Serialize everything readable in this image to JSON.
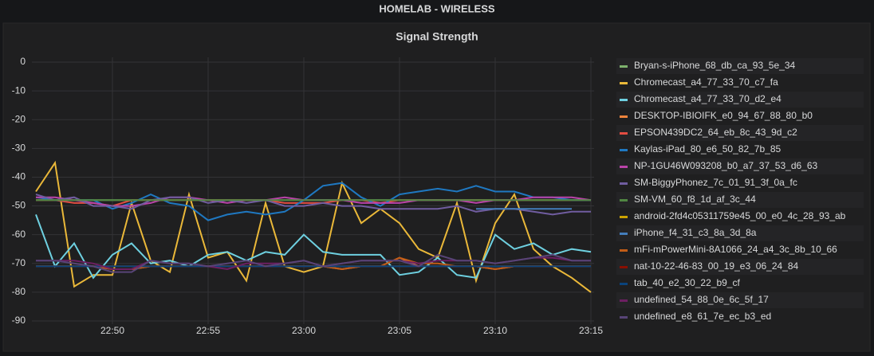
{
  "header": {
    "title": "HOMELAB - WIRELESS"
  },
  "chart_data": {
    "type": "line",
    "title": "Signal Strength",
    "x": [
      "22:46",
      "22:47",
      "22:48",
      "22:49",
      "22:50",
      "22:51",
      "22:52",
      "22:53",
      "22:54",
      "22:55",
      "22:56",
      "22:57",
      "22:58",
      "22:59",
      "23:00",
      "23:01",
      "23:02",
      "23:03",
      "23:04",
      "23:05",
      "23:06",
      "23:07",
      "23:08",
      "23:09",
      "23:10",
      "23:11",
      "23:12",
      "23:13",
      "23:14",
      "23:15"
    ],
    "xlim": [
      "22:46",
      "23:15"
    ],
    "xticks": [
      "22:50",
      "22:55",
      "23:00",
      "23:05",
      "23:10",
      "23:15"
    ],
    "ylim": [
      -90,
      0
    ],
    "yticks": [
      0,
      -10,
      -20,
      -30,
      -40,
      -50,
      -60,
      -70,
      -80,
      -90
    ],
    "grid": true,
    "legend": "right",
    "series": [
      {
        "name": "Bryan-s-iPhone_68_db_ca_93_5e_34",
        "color": "#7eb26d",
        "values": [
          -48,
          -48,
          -48,
          -48,
          -48,
          -48,
          -48,
          -48,
          -48,
          -48,
          -48,
          -48,
          -48,
          -48,
          -48,
          -48,
          -48,
          -48,
          -48,
          -48,
          -48,
          -48,
          -48,
          -48,
          -48,
          -48,
          -48,
          -48,
          -48,
          -48
        ]
      },
      {
        "name": "Chromecast_a4_77_33_70_c7_fa",
        "color": "#eab839",
        "values": [
          -45,
          -35,
          -78,
          -74,
          -74,
          -49,
          -69,
          -73,
          -46,
          -68,
          -66,
          -76,
          -49,
          -71,
          -73,
          -71,
          -42,
          -56,
          -51,
          -56,
          -65,
          -68,
          -49,
          -76,
          -56,
          -46,
          -65,
          -71,
          -75,
          -80
        ]
      },
      {
        "name": "Chromecast_a4_77_33_70_d2_e4",
        "color": "#6ed0e0",
        "values": [
          -53,
          -71,
          -63,
          -75,
          -67,
          -63,
          -70,
          -69,
          -71,
          -67,
          -66,
          -69,
          -66,
          -67,
          -60,
          -66,
          -67,
          -67,
          -67,
          -74,
          -73,
          -68,
          -74,
          -75,
          -60,
          -65,
          -63,
          -67,
          -65,
          -66
        ]
      },
      {
        "name": "DESKTOP-IBIOIFK_e0_94_67_88_80_b0",
        "color": "#ef843c",
        "values": [
          -71,
          -71,
          -71,
          -71,
          -72,
          -72,
          -71,
          -71,
          -71,
          -71,
          -71,
          -71,
          -71,
          -71,
          -71,
          -71,
          -72,
          -71,
          -71,
          -68,
          -71,
          -71,
          -71,
          -71,
          -72,
          -71,
          -71,
          -71,
          -71,
          -71
        ]
      },
      {
        "name": "EPSON439DC2_64_eb_8c_43_9d_c2",
        "color": "#e24d42",
        "values": [
          -48,
          -48,
          -49,
          -49,
          -50,
          -48,
          -48,
          -48,
          -48,
          -48,
          -48,
          -48,
          -48,
          -49,
          -49,
          -49,
          -48,
          -48,
          -49,
          -48,
          -48,
          -48,
          -48,
          -48,
          -48,
          -48,
          -48,
          -48,
          -48,
          -48
        ]
      },
      {
        "name": "Kaylas-iPad_80_e6_50_82_7b_85",
        "color": "#1f78c1",
        "values": [
          -47,
          -48,
          -48,
          -48,
          -51,
          -49,
          -46,
          -49,
          -50,
          -55,
          -53,
          -52,
          -53,
          -52,
          -48,
          -43,
          -42,
          -47,
          -50,
          -46,
          -45,
          -44,
          -45,
          -43,
          -45,
          -45,
          -47,
          -47,
          -48,
          -48
        ]
      },
      {
        "name": "NP-1GU46W093208_b0_a7_37_53_d6_63",
        "color": "#ba43a9",
        "values": [
          -47,
          -47,
          -48,
          -49,
          -50,
          -50,
          -49,
          -47,
          -47,
          -48,
          -49,
          -48,
          -48,
          -47,
          -48,
          -48,
          -48,
          -49,
          -49,
          -49,
          -48,
          -48,
          -48,
          -49,
          -48,
          -48,
          -47,
          -47,
          -47,
          -48
        ]
      },
      {
        "name": "SM-BiggyPhonez_7c_01_91_3f_0a_fc",
        "color": "#705da0",
        "values": [
          -46,
          -48,
          -47,
          -50,
          -50,
          -51,
          -48,
          -47,
          -47,
          -49,
          -48,
          -49,
          -48,
          -50,
          -50,
          -49,
          -50,
          -50,
          -51,
          -51,
          -51,
          -51,
          -50,
          -52,
          -51,
          -51,
          -52,
          -53,
          -52,
          -52
        ]
      },
      {
        "name": "SM-VM_60_f8_1d_af_3c_44",
        "color": "#508642",
        "values": [
          -48,
          -48,
          -48,
          -48,
          -48,
          -48,
          -48,
          -48,
          -48,
          -48,
          -48,
          -48,
          -48,
          -48,
          -48,
          -48,
          -48,
          -48,
          -48,
          -48,
          -48,
          -48,
          -48,
          -48,
          -48,
          -48,
          -48,
          -48,
          -48,
          -48
        ]
      },
      {
        "name": "android-2fd4c05311759e45_00_e0_4c_28_93_ab",
        "color": "#cca300",
        "values": [
          -71,
          -71,
          -71,
          -71,
          -71,
          -71,
          -71,
          -71,
          -71,
          -71,
          -71,
          -71,
          -71,
          -71,
          -71,
          -71,
          -71,
          -71,
          -71,
          -71,
          -71,
          -71,
          -71,
          -71,
          -71,
          -71,
          -71,
          -71,
          -71,
          -71
        ]
      },
      {
        "name": "iPhone_f4_31_c3_8a_3d_8a",
        "color": "#447ebc",
        "values": [
          null,
          null,
          null,
          null,
          null,
          null,
          null,
          null,
          null,
          null,
          null,
          null,
          null,
          null,
          null,
          null,
          null,
          null,
          null,
          null,
          null,
          null,
          null,
          -51,
          -51,
          -51,
          -51,
          -51,
          -51,
          null
        ]
      },
      {
        "name": "mFi-mPowerMini-8A1066_24_a4_3c_8b_10_66",
        "color": "#c15c17",
        "values": [
          -71,
          -71,
          -71,
          -71,
          -72,
          -72,
          -71,
          -71,
          -71,
          -71,
          -71,
          -71,
          -71,
          -71,
          -71,
          -71,
          -72,
          -71,
          -71,
          -68,
          -70,
          -70,
          -71,
          -71,
          -72,
          -71,
          -71,
          -71,
          -71,
          -71
        ]
      },
      {
        "name": "nat-10-22-46-83_00_19_e3_06_24_84",
        "color": "#890f02",
        "values": [
          -71,
          -71,
          -71,
          -71,
          -71,
          -71,
          -71,
          -71,
          -71,
          -71,
          -71,
          -71,
          -71,
          -71,
          -71,
          -71,
          -71,
          -71,
          -71,
          -71,
          -71,
          -71,
          -71,
          -71,
          -71,
          -71,
          -71,
          -71,
          -71,
          -71
        ]
      },
      {
        "name": "tab_40_e2_30_22_b9_cf",
        "color": "#0a437c",
        "values": [
          -71,
          -71,
          -71,
          -71,
          -71,
          -71,
          -71,
          -71,
          -71,
          -71,
          -71,
          -71,
          -71,
          -71,
          -71,
          -71,
          -71,
          -71,
          -71,
          -71,
          -71,
          -71,
          -71,
          -71,
          -71,
          -71,
          -71,
          -71,
          -71,
          -71
        ]
      },
      {
        "name": "undefined_54_88_0e_6c_5f_17",
        "color": "#6d1f62",
        "values": [
          -69,
          -69,
          -69,
          -70,
          -72,
          -72,
          -69,
          -70,
          -70,
          -71,
          -72,
          -70,
          -70,
          -70,
          -69,
          -71,
          -70,
          -69,
          -69,
          -69,
          -70,
          -69,
          -69,
          -69,
          -70,
          -69,
          -68,
          -68,
          -69,
          -69
        ]
      },
      {
        "name": "undefined_e8_61_7e_ec_b3_ed",
        "color": "#584477",
        "values": [
          -69,
          -69,
          -70,
          -71,
          -73,
          -73,
          -69,
          -70,
          -70,
          -71,
          -70,
          -69,
          -71,
          -70,
          -69,
          -71,
          -70,
          -69,
          -69,
          -69,
          -71,
          -67,
          -69,
          -69,
          -70,
          -69,
          -68,
          -67,
          -69,
          -69
        ]
      }
    ]
  }
}
